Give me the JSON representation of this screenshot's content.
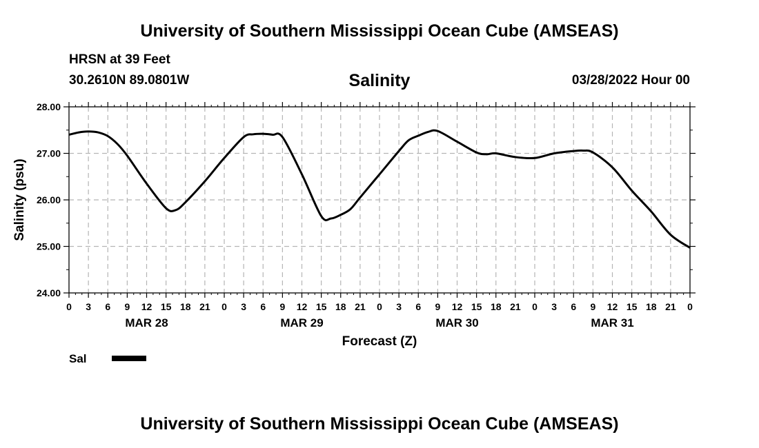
{
  "header": {
    "title_top": "University of Southern Mississippi Ocean Cube (AMSEAS)",
    "station": "HRSN at 39 Feet",
    "coords": "30.2610N  89.0801W",
    "timestamp": "03/28/2022 Hour 00",
    "title_bottom": "University of Southern Mississippi Ocean Cube (AMSEAS)"
  },
  "chart_data": {
    "type": "line",
    "title": "Salinity",
    "xlabel": "Forecast (Z)",
    "ylabel": "Salinity (psu)",
    "ylim": [
      24.0,
      28.0
    ],
    "yticks": [
      "24.00",
      "25.00",
      "26.00",
      "27.00",
      "28.00"
    ],
    "xlim": [
      0,
      96
    ],
    "xtick_labels": [
      "0",
      "3",
      "6",
      "9",
      "12",
      "15",
      "18",
      "21",
      "0",
      "3",
      "6",
      "9",
      "12",
      "15",
      "18",
      "21",
      "0",
      "3",
      "6",
      "9",
      "12",
      "15",
      "18",
      "21",
      "0",
      "3",
      "6",
      "9",
      "12",
      "15",
      "18",
      "21",
      "0"
    ],
    "day_labels": [
      {
        "label": "MAR 28",
        "hour": 12
      },
      {
        "label": "MAR 29",
        "hour": 36
      },
      {
        "label": "MAR 30",
        "hour": 60
      },
      {
        "label": "MAR 31",
        "hour": 84
      }
    ],
    "grid": true,
    "legend": [
      {
        "name": "Sal",
        "color": "#000000"
      }
    ],
    "series": [
      {
        "name": "Sal",
        "color": "#000000",
        "x": [
          0,
          1.5,
          3,
          4.5,
          6,
          7.5,
          9,
          12,
          15,
          16.5,
          18,
          21,
          24,
          27,
          28.5,
          30,
          31.5,
          33,
          36,
          39,
          40.5,
          42,
          43.5,
          45,
          48,
          51,
          52.5,
          54,
          55.5,
          57,
          60,
          63,
          64.5,
          66,
          69,
          72,
          75,
          78,
          79.5,
          81,
          84,
          87,
          90,
          93,
          96
        ],
        "y": [
          27.4,
          27.45,
          27.47,
          27.45,
          27.37,
          27.2,
          26.95,
          26.35,
          25.82,
          25.78,
          25.95,
          26.4,
          26.9,
          27.35,
          27.41,
          27.42,
          27.4,
          27.35,
          26.55,
          25.65,
          25.6,
          25.68,
          25.8,
          26.05,
          26.55,
          27.05,
          27.28,
          27.38,
          27.46,
          27.48,
          27.25,
          27.02,
          26.98,
          27.0,
          26.92,
          26.9,
          27.0,
          27.05,
          27.06,
          27.02,
          26.7,
          26.2,
          25.75,
          25.25,
          24.97
        ]
      }
    ]
  }
}
